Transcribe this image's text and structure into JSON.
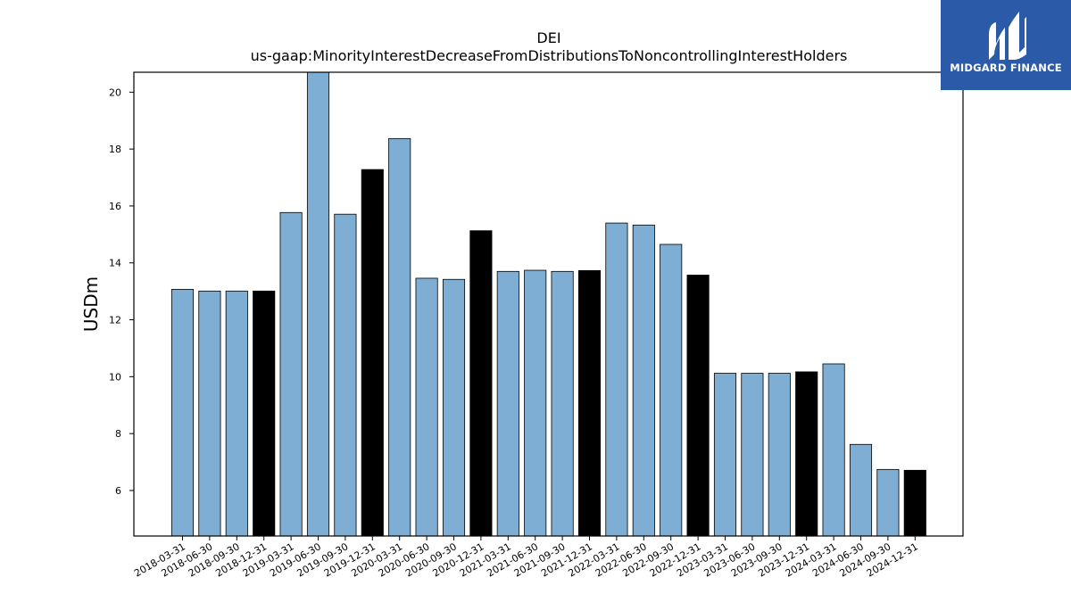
{
  "chart_data": {
    "type": "bar",
    "title_line1": "DEI",
    "title_line2": "us-gaap:MinorityInterestDecreaseFromDistributionsToNoncontrollingInterestHolders",
    "xlabel": "",
    "ylabel": "USDm",
    "ylim": [
      4.4,
      20.7
    ],
    "yticks": [
      6,
      8,
      10,
      12,
      14,
      16,
      18,
      20
    ],
    "grid": false,
    "categories": [
      "2018-03-31",
      "2018-06-30",
      "2018-09-30",
      "2018-12-31",
      "2019-03-31",
      "2019-06-30",
      "2019-09-30",
      "2019-12-31",
      "2020-03-31",
      "2020-06-30",
      "2020-09-30",
      "2020-12-31",
      "2021-03-31",
      "2021-06-30",
      "2021-09-30",
      "2021-12-31",
      "2022-03-31",
      "2022-06-30",
      "2022-09-30",
      "2022-12-31",
      "2023-03-31",
      "2023-06-30",
      "2023-09-30",
      "2023-12-31",
      "2024-03-31",
      "2024-06-30",
      "2024-09-30",
      "2024-12-31"
    ],
    "values": [
      13.07,
      13.01,
      13.01,
      13.01,
      15.77,
      20.75,
      15.71,
      17.28,
      18.37,
      13.46,
      13.42,
      15.13,
      13.7,
      13.74,
      13.7,
      13.73,
      15.4,
      15.33,
      14.65,
      13.57,
      10.12,
      10.12,
      10.12,
      10.17,
      10.45,
      7.62,
      6.74,
      6.71
    ],
    "colors": {
      "quarter": "#7eaed3",
      "year_end": "#000000",
      "edge": "#000000"
    }
  },
  "logo": {
    "text": "MIDGARD FINANCE",
    "icon": "midgard-logo-icon",
    "bg": "#2b5aa8"
  }
}
